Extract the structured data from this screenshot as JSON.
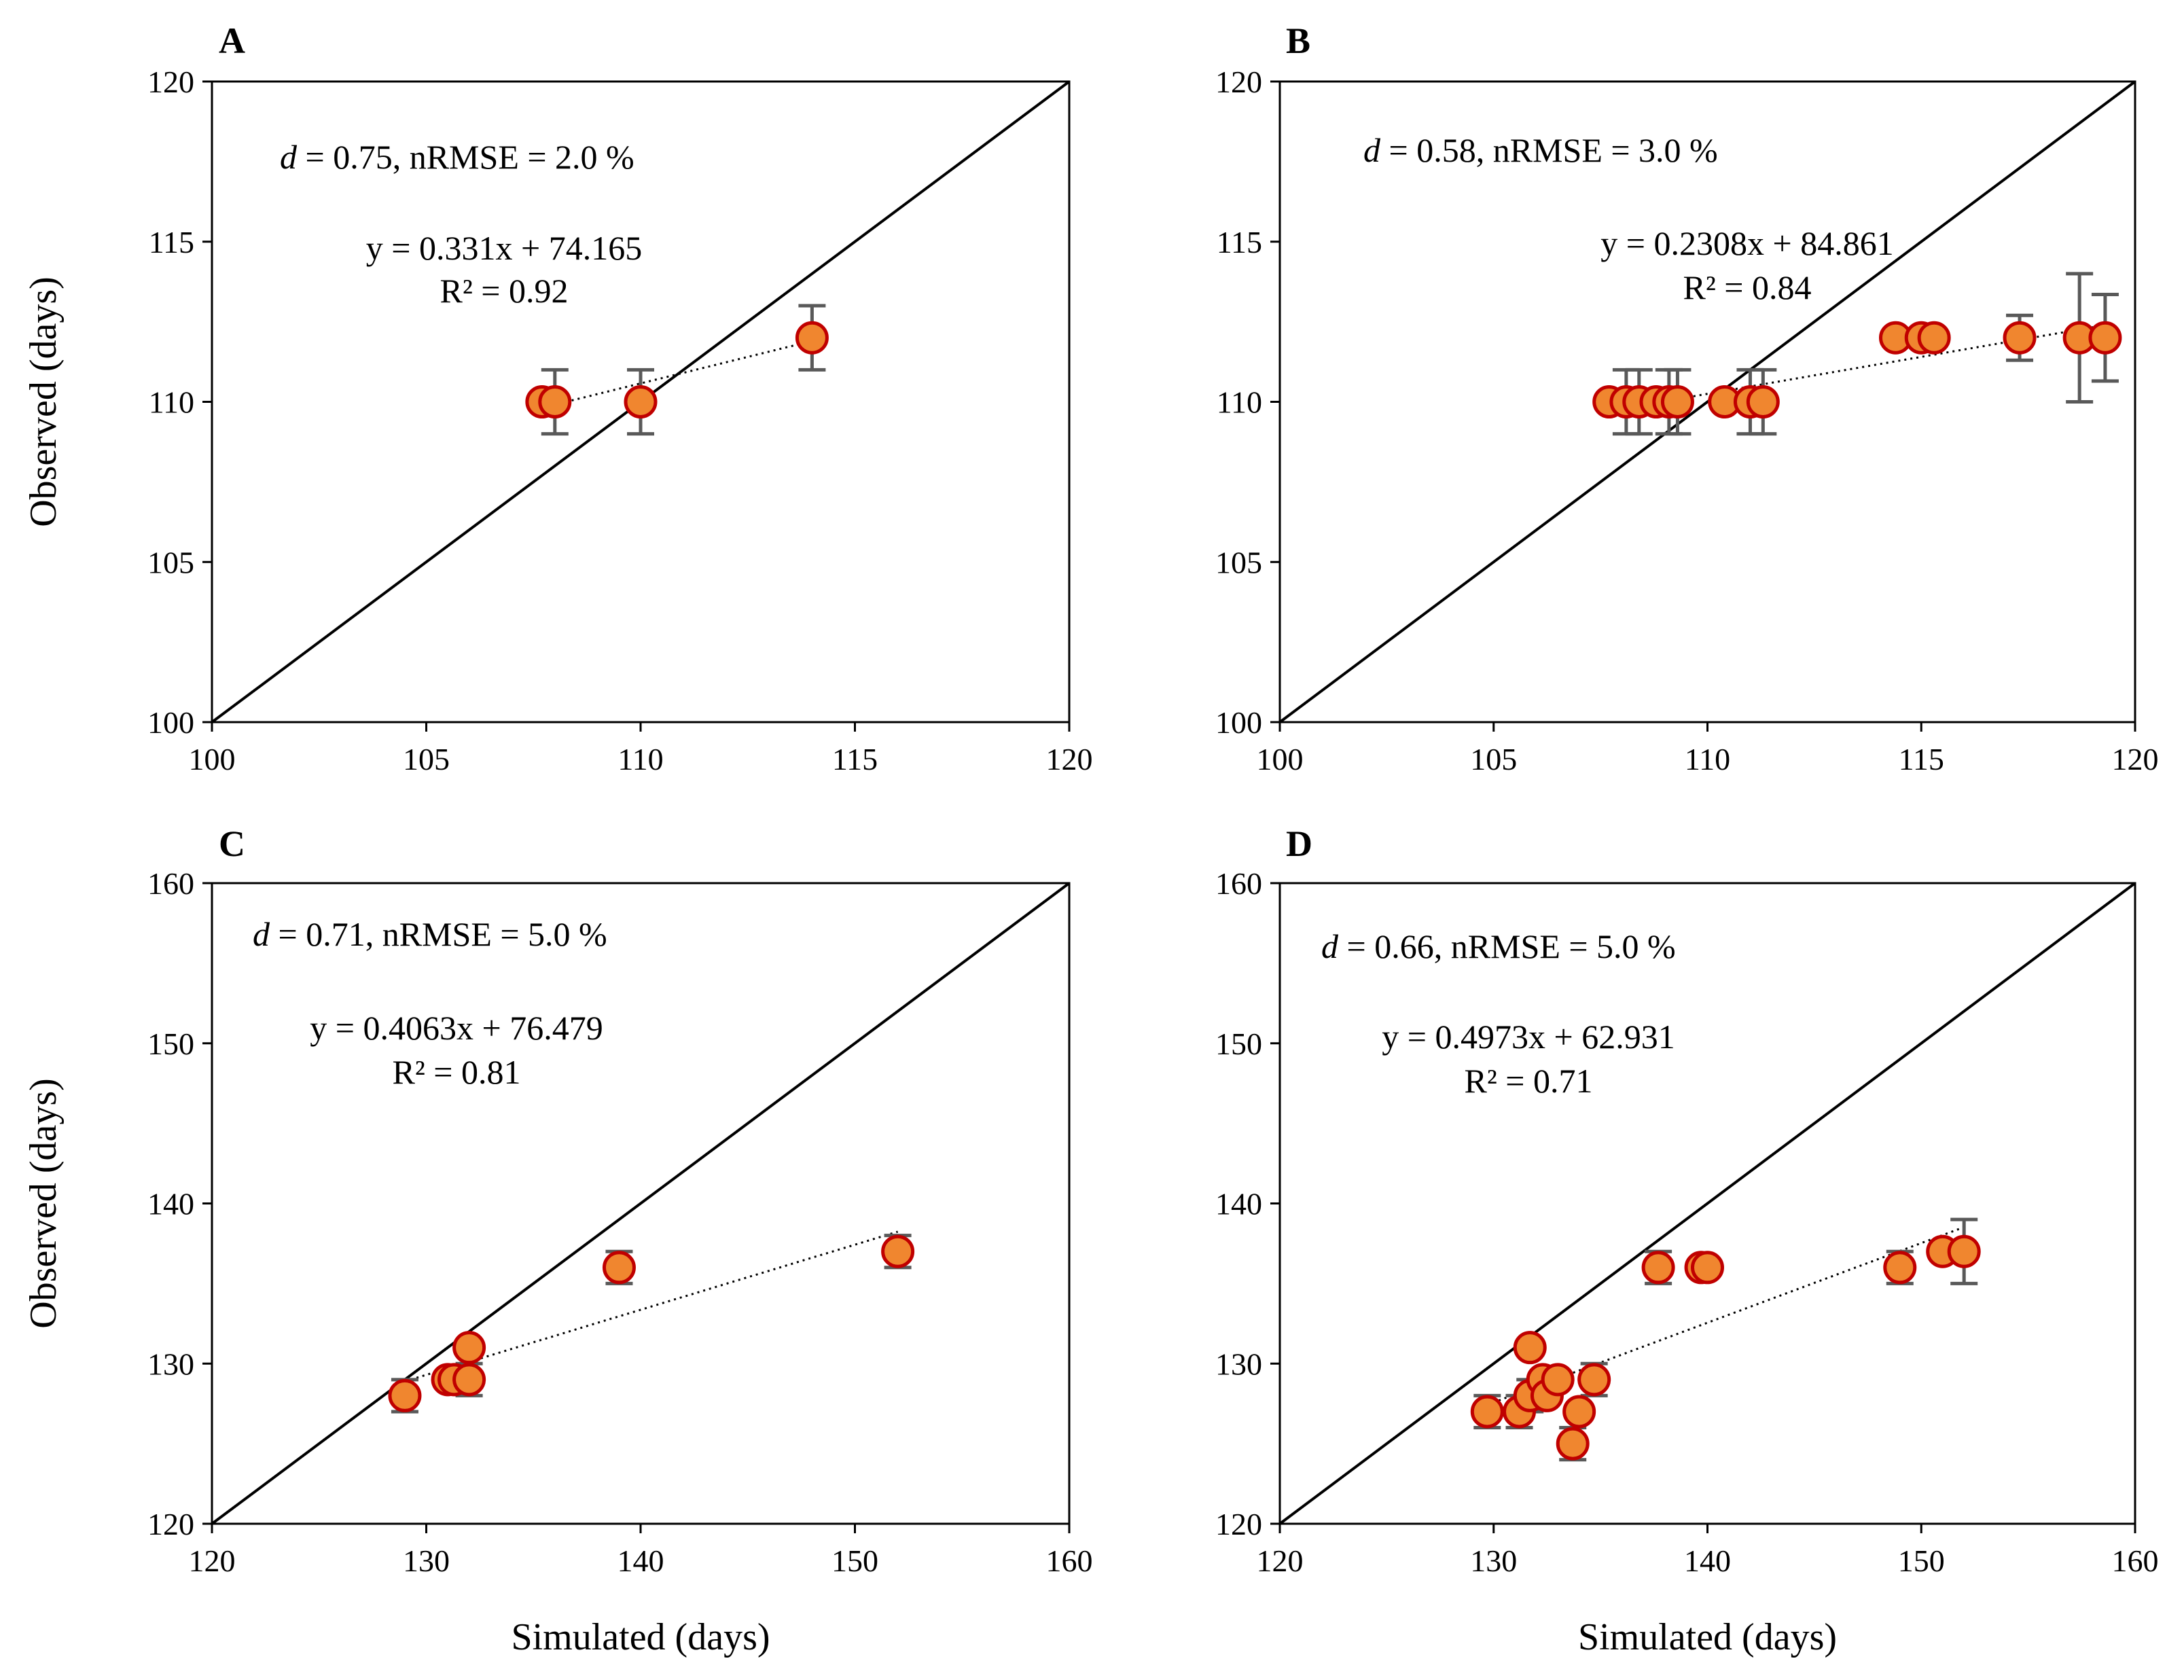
{
  "figure": {
    "y_axis_title": "Observed (days)",
    "x_axis_title": "Simulated (days)"
  },
  "chart_data": [
    {
      "panel": "A",
      "type": "scatter",
      "xlabel": "",
      "ylabel": "Observed (days)",
      "xlim": [
        100,
        120
      ],
      "ylim": [
        100,
        120
      ],
      "xticks": [
        100,
        105,
        110,
        115,
        120
      ],
      "yticks": [
        100,
        105,
        110,
        115,
        120
      ],
      "d_label": "d",
      "stats_text": " = 0.75, nRMSE = 2.0 %",
      "equation": "y = 0.331x + 74.165",
      "r2": "R² = 0.92",
      "trend": {
        "slope": 0.331,
        "intercept": 74.165,
        "x_range": [
          107.7,
          114
        ]
      },
      "points": [
        {
          "x": 107.7,
          "y": 110,
          "err": 0
        },
        {
          "x": 108.0,
          "y": 110,
          "err": 1
        },
        {
          "x": 110.0,
          "y": 110,
          "err": 1
        },
        {
          "x": 114.0,
          "y": 112,
          "err": 1
        }
      ]
    },
    {
      "panel": "B",
      "type": "scatter",
      "xlabel": "",
      "ylabel": "",
      "xlim": [
        100,
        120
      ],
      "ylim": [
        100,
        120
      ],
      "xticks": [
        100,
        105,
        110,
        115,
        120
      ],
      "yticks": [
        100,
        105,
        110,
        115,
        120
      ],
      "d_label": "d",
      "stats_text": " = 0.58, nRMSE = 3.0 %",
      "equation": "y = 0.2308x + 84.861",
      "r2": "R² = 0.84",
      "trend": {
        "slope": 0.2308,
        "intercept": 84.861,
        "x_range": [
          107.7,
          119.3
        ]
      },
      "points": [
        {
          "x": 107.7,
          "y": 110,
          "err": 0
        },
        {
          "x": 108.1,
          "y": 110,
          "err": 1
        },
        {
          "x": 108.4,
          "y": 110,
          "err": 1
        },
        {
          "x": 108.8,
          "y": 110,
          "err": 0
        },
        {
          "x": 109.1,
          "y": 110,
          "err": 1
        },
        {
          "x": 109.3,
          "y": 110,
          "err": 1
        },
        {
          "x": 110.4,
          "y": 110,
          "err": 0
        },
        {
          "x": 111.0,
          "y": 110,
          "err": 1
        },
        {
          "x": 111.3,
          "y": 110,
          "err": 1
        },
        {
          "x": 114.4,
          "y": 112,
          "err": 0
        },
        {
          "x": 115.0,
          "y": 112,
          "err": 0
        },
        {
          "x": 115.3,
          "y": 112,
          "err": 0
        },
        {
          "x": 117.3,
          "y": 112,
          "err": 0.7
        },
        {
          "x": 118.7,
          "y": 112,
          "err": 2
        },
        {
          "x": 119.3,
          "y": 112,
          "err": 1.35
        }
      ]
    },
    {
      "panel": "C",
      "type": "scatter",
      "xlabel": "Simulated (days)",
      "ylabel": "Observed (days)",
      "xlim": [
        120,
        160
      ],
      "ylim": [
        120,
        160
      ],
      "xticks": [
        120,
        130,
        140,
        150,
        160
      ],
      "yticks": [
        120,
        130,
        140,
        150,
        160
      ],
      "d_label": "d",
      "stats_text": " = 0.71, nRMSE = 5.0 %",
      "equation": "y = 0.4063x + 76.479",
      "r2": "R² = 0.81",
      "trend": {
        "slope": 0.4063,
        "intercept": 76.479,
        "x_range": [
          129,
          152
        ]
      },
      "points": [
        {
          "x": 129.0,
          "y": 128,
          "err": 1
        },
        {
          "x": 131.0,
          "y": 129,
          "err": 0
        },
        {
          "x": 131.3,
          "y": 129,
          "err": 0
        },
        {
          "x": 132.0,
          "y": 129,
          "err": 1
        },
        {
          "x": 132.0,
          "y": 131,
          "err": 0
        },
        {
          "x": 139.0,
          "y": 136,
          "err": 1
        },
        {
          "x": 152.0,
          "y": 137,
          "err": 1
        }
      ]
    },
    {
      "panel": "D",
      "type": "scatter",
      "xlabel": "Simulated (days)",
      "ylabel": "",
      "xlim": [
        120,
        160
      ],
      "ylim": [
        120,
        160
      ],
      "xticks": [
        120,
        130,
        140,
        150,
        160
      ],
      "yticks": [
        120,
        130,
        140,
        150,
        160
      ],
      "d_label": "d",
      "stats_text": " = 0.66, nRMSE = 5.0 %",
      "equation": "y = 0.4973x + 62.931",
      "r2": "R² = 0.71",
      "trend": {
        "slope": 0.4973,
        "intercept": 62.931,
        "x_range": [
          129.7,
          152
        ]
      },
      "points": [
        {
          "x": 129.7,
          "y": 127,
          "err": 1
        },
        {
          "x": 131.2,
          "y": 127,
          "err": 1
        },
        {
          "x": 131.7,
          "y": 128,
          "err": 1
        },
        {
          "x": 131.7,
          "y": 131,
          "err": 0
        },
        {
          "x": 132.3,
          "y": 129,
          "err": 0
        },
        {
          "x": 132.5,
          "y": 128,
          "err": 0
        },
        {
          "x": 133.0,
          "y": 129,
          "err": 0
        },
        {
          "x": 133.7,
          "y": 125,
          "err": 1
        },
        {
          "x": 134.0,
          "y": 127,
          "err": 0
        },
        {
          "x": 134.7,
          "y": 129,
          "err": 1
        },
        {
          "x": 137.7,
          "y": 136,
          "err": 1
        },
        {
          "x": 139.7,
          "y": 136,
          "err": 0
        },
        {
          "x": 140.0,
          "y": 136,
          "err": 0
        },
        {
          "x": 149.0,
          "y": 136,
          "err": 1
        },
        {
          "x": 151.0,
          "y": 137,
          "err": 0
        },
        {
          "x": 152.0,
          "y": 137,
          "err": 2
        }
      ]
    }
  ]
}
